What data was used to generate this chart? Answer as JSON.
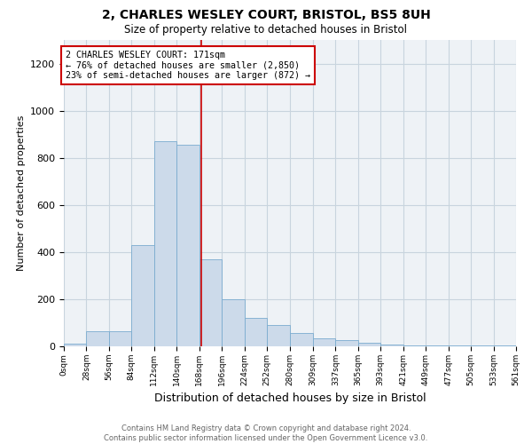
{
  "title": "2, CHARLES WESLEY COURT, BRISTOL, BS5 8UH",
  "subtitle": "Size of property relative to detached houses in Bristol",
  "xlabel": "Distribution of detached houses by size in Bristol",
  "ylabel": "Number of detached properties",
  "footnote1": "Contains HM Land Registry data © Crown copyright and database right 2024.",
  "footnote2": "Contains public sector information licensed under the Open Government Licence v3.0.",
  "bar_color": "#ccdaea",
  "bar_edge_color": "#7aabcf",
  "grid_color": "#c8d4de",
  "bg_color": "#eef2f6",
  "annotation_line_color": "#cc0000",
  "annotation_box_edge": "#cc0000",
  "annotation_text_line1": "2 CHARLES WESLEY COURT: 171sqm",
  "annotation_text_line2": "← 76% of detached houses are smaller (2,850)",
  "annotation_text_line3": "23% of semi-detached houses are larger (872) →",
  "property_size": 171,
  "bins": [
    0,
    28,
    56,
    84,
    112,
    140,
    168,
    196,
    224,
    252,
    280,
    309,
    337,
    365,
    393,
    421,
    449,
    477,
    505,
    533,
    561
  ],
  "counts": [
    10,
    65,
    65,
    430,
    870,
    855,
    370,
    200,
    120,
    90,
    55,
    35,
    25,
    15,
    8,
    5,
    5,
    2,
    2,
    5
  ],
  "ylim": [
    0,
    1300
  ],
  "yticks": [
    0,
    200,
    400,
    600,
    800,
    1000,
    1200
  ],
  "figsize": [
    6.0,
    5.0
  ],
  "dpi": 100
}
